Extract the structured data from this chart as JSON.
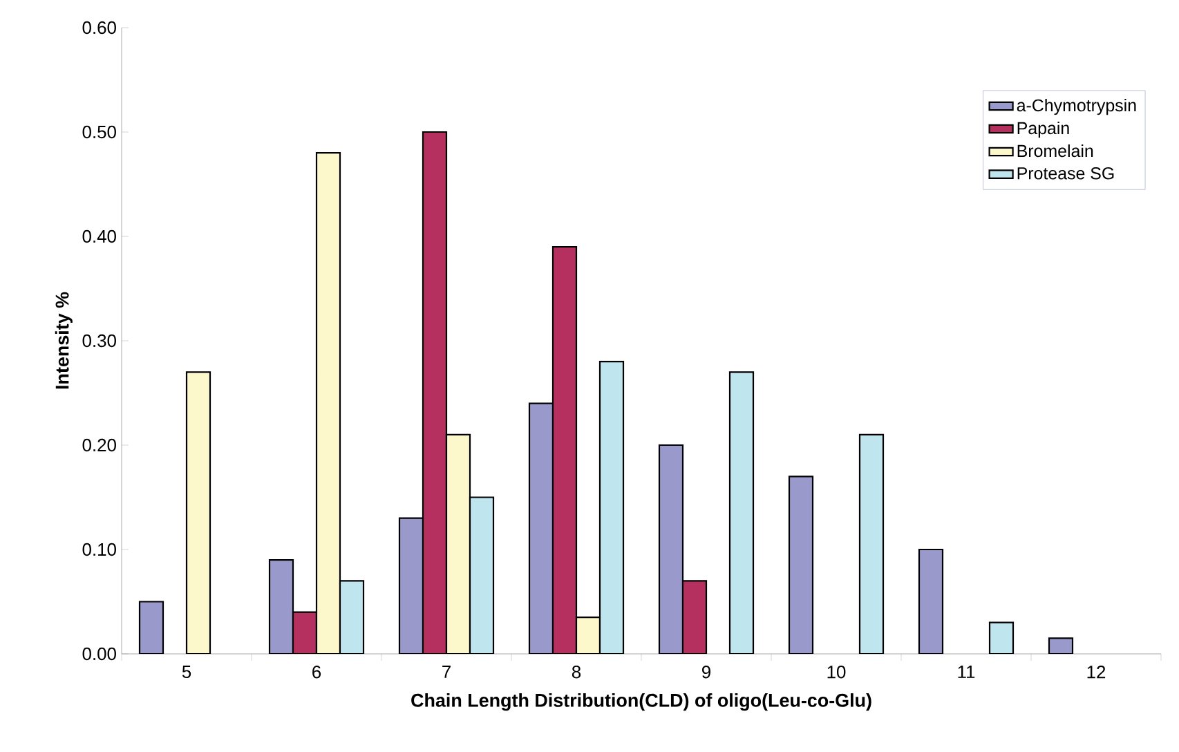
{
  "chart_data": {
    "type": "bar",
    "xlabel": "Chain Length Distribution(CLD) of oligo(Leu-co-Glu)",
    "ylabel": "Intensity %",
    "categories": [
      "5",
      "6",
      "7",
      "8",
      "9",
      "10",
      "11",
      "12"
    ],
    "series": [
      {
        "name": "a-Chymotrypsin",
        "color": "#9999cc",
        "values": [
          0.05,
          0.09,
          0.13,
          0.24,
          0.2,
          0.17,
          0.1,
          0.015
        ]
      },
      {
        "name": "Papain",
        "color": "#b5305f",
        "values": [
          null,
          0.04,
          0.5,
          0.39,
          0.07,
          null,
          null,
          null
        ]
      },
      {
        "name": "Bromelain",
        "color": "#fdf8cc",
        "values": [
          0.27,
          0.48,
          0.21,
          0.035,
          null,
          null,
          null,
          null
        ]
      },
      {
        "name": "Protease SG",
        "color": "#bfe5ef",
        "values": [
          null,
          0.07,
          0.15,
          0.28,
          0.27,
          0.21,
          0.03,
          null
        ]
      }
    ],
    "ylim": [
      0,
      0.6
    ],
    "yticks": [
      {
        "value": 0,
        "label": "0.00"
      },
      {
        "value": 0.1,
        "label": "0.10"
      },
      {
        "value": 0.2,
        "label": "0.20"
      },
      {
        "value": 0.3,
        "label": "0.30"
      },
      {
        "value": 0.4,
        "label": "0.40"
      },
      {
        "value": 0.5,
        "label": "0.50"
      },
      {
        "value": 0.6,
        "label": "0.60"
      }
    ],
    "grid": false,
    "legend": "top right"
  }
}
